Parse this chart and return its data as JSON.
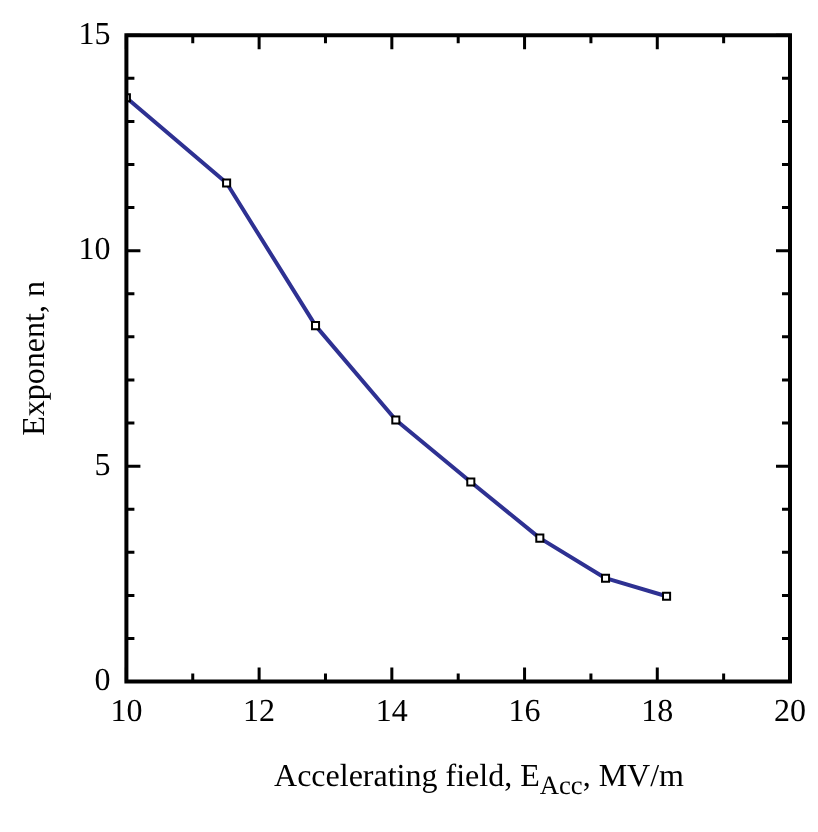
{
  "chart_data": {
    "type": "line",
    "xlabel": "Accelerating field, E$_{Acc}$, MV/m",
    "ylabel": "Exponent, n",
    "x": [
      10,
      11.51,
      12.85,
      14.06,
      15.19,
      16.23,
      17.22,
      18.14
    ],
    "series": [
      {
        "color": "#2e3192",
        "values": [
          13.55,
          11.57,
          8.26,
          6.07,
          4.63,
          3.33,
          2.4,
          1.98
        ]
      }
    ],
    "xlim": [
      10,
      20
    ],
    "ylim": [
      0,
      15
    ],
    "xticks": [
      10,
      {
        "value": 11,
        "label": null
      },
      12,
      {
        "value": 13,
        "label": null
      },
      14,
      {
        "value": 15,
        "label": null
      },
      16,
      {
        "value": 17,
        "label": null
      },
      18,
      {
        "value": 19,
        "label": null
      },
      20
    ],
    "yticks": [
      0,
      {
        "value": 1,
        "label": null
      },
      {
        "value": 2,
        "label": null
      },
      {
        "value": 3,
        "label": null
      },
      {
        "value": 4,
        "label": null
      },
      5,
      {
        "value": 6,
        "label": null
      },
      {
        "value": 7,
        "label": null
      },
      {
        "value": 8,
        "label": null
      },
      {
        "value": 9,
        "label": null
      },
      10,
      {
        "value": 11,
        "label": null
      },
      {
        "value": 12,
        "label": null
      },
      {
        "value": 13,
        "label": null
      },
      {
        "value": 14,
        "label": null
      },
      15
    ],
    "marker": "square",
    "grid": false,
    "legend": false
  }
}
